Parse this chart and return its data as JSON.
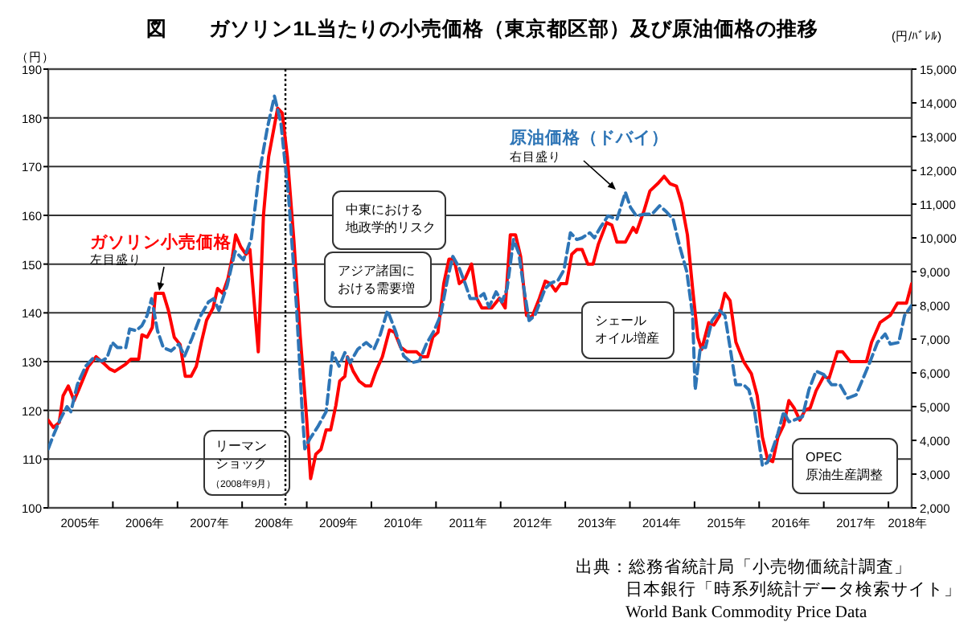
{
  "chart_data": {
    "type": "line",
    "title": "図　　ガソリン1L当たりの小売価格（東京都区部）及び原油価格の推移",
    "ylabel": "（円）",
    "y2label": "(円/ﾊﾞﾚﾙ)",
    "xlim": [
      2005,
      2018.36
    ],
    "xticks": [
      {
        "value": 2005.5,
        "label": "2005年"
      },
      {
        "value": 2006,
        "label": null
      },
      {
        "value": 2006.5,
        "label": "2006年"
      },
      {
        "value": 2007,
        "label": null
      },
      {
        "value": 2007.5,
        "label": "2007年"
      },
      {
        "value": 2008,
        "label": null
      },
      {
        "value": 2008.5,
        "label": "2008年"
      },
      {
        "value": 2009,
        "label": null
      },
      {
        "value": 2009.5,
        "label": "2009年"
      },
      {
        "value": 2010,
        "label": null
      },
      {
        "value": 2010.5,
        "label": "2010年"
      },
      {
        "value": 2011,
        "label": null
      },
      {
        "value": 2011.5,
        "label": "2011年"
      },
      {
        "value": 2012,
        "label": null
      },
      {
        "value": 2012.5,
        "label": "2012年"
      },
      {
        "value": 2013,
        "label": null
      },
      {
        "value": 2013.5,
        "label": "2013年"
      },
      {
        "value": 2014,
        "label": null
      },
      {
        "value": 2014.5,
        "label": "2014年"
      },
      {
        "value": 2015,
        "label": null
      },
      {
        "value": 2015.5,
        "label": "2015年"
      },
      {
        "value": 2016,
        "label": null
      },
      {
        "value": 2016.5,
        "label": "2016年"
      },
      {
        "value": 2017,
        "label": null
      },
      {
        "value": 2017.5,
        "label": "2017年"
      },
      {
        "value": 2018,
        "label": null
      },
      {
        "value": 2018.3,
        "label": "2018年"
      }
    ],
    "ylim": [
      100,
      190
    ],
    "yticks": [
      100,
      110,
      120,
      130,
      140,
      150,
      160,
      170,
      180,
      190
    ],
    "y2lim": [
      2000,
      15000
    ],
    "y2ticks": [
      {
        "value": 2000,
        "label": "2,000"
      },
      {
        "value": 3000,
        "label": "3,000"
      },
      {
        "value": 4000,
        "label": "4,000"
      },
      {
        "value": 5000,
        "label": "5,000"
      },
      {
        "value": 6000,
        "label": "6,000"
      },
      {
        "value": 7000,
        "label": "7,000"
      },
      {
        "value": 8000,
        "label": "8,000"
      },
      {
        "value": 9000,
        "label": "9,000"
      },
      {
        "value": 10000,
        "label": "10,000"
      },
      {
        "value": 11000,
        "label": "11,000"
      },
      {
        "value": 12000,
        "label": "12,000"
      },
      {
        "value": 13000,
        "label": "13,000"
      },
      {
        "value": 14000,
        "label": "14,000"
      },
      {
        "value": 15000,
        "label": "15,000"
      }
    ],
    "grid": "y",
    "legend": false,
    "marker": "none",
    "series": [
      {
        "name": "ガソリン小売価格",
        "color": "#ff0000",
        "line_style": "solid",
        "x": [
          2005.0,
          2005.08,
          2005.17,
          2005.23,
          2005.31,
          2005.4,
          2005.48,
          2005.62,
          2005.74,
          2005.87,
          2005.95,
          2006.03,
          2006.2,
          2006.28,
          2006.4,
          2006.45,
          2006.53,
          2006.61,
          2006.66,
          2006.78,
          2006.86,
          2006.95,
          2007.04,
          2007.12,
          2007.21,
          2007.29,
          2007.37,
          2007.45,
          2007.55,
          2007.62,
          2007.7,
          2007.78,
          2007.85,
          2007.9,
          2007.98,
          2008.06,
          2008.12,
          2008.25,
          2008.33,
          2008.41,
          2008.55,
          2008.62,
          2008.7,
          2008.8,
          2008.9,
          2009.0,
          2009.06,
          2009.14,
          2009.22,
          2009.3,
          2009.37,
          2009.45,
          2009.51,
          2009.59,
          2009.63,
          2009.72,
          2009.81,
          2009.91,
          2009.99,
          2010.07,
          2010.17,
          2010.28,
          2010.36,
          2010.45,
          2010.55,
          2010.7,
          2010.78,
          2010.87,
          2010.95,
          2011.03,
          2011.12,
          2011.2,
          2011.28,
          2011.36,
          2011.45,
          2011.55,
          2011.63,
          2011.71,
          2011.78,
          2011.86,
          2011.98,
          2012.07,
          2012.15,
          2012.23,
          2012.31,
          2012.4,
          2012.48,
          2012.6,
          2012.69,
          2012.77,
          2012.85,
          2012.93,
          2013.02,
          2013.1,
          2013.18,
          2013.26,
          2013.35,
          2013.43,
          2013.51,
          2013.64,
          2013.72,
          2013.8,
          2013.93,
          2014.05,
          2014.1,
          2014.22,
          2014.31,
          2014.43,
          2014.53,
          2014.62,
          2014.72,
          2014.8,
          2014.89,
          2014.97,
          2015.05,
          2015.11,
          2015.22,
          2015.3,
          2015.39,
          2015.47,
          2015.55,
          2015.64,
          2015.76,
          2015.88,
          2015.97,
          2016.05,
          2016.13,
          2016.21,
          2016.29,
          2016.38,
          2016.46,
          2016.54,
          2016.63,
          2016.71,
          2016.79,
          2016.88,
          2017.0,
          2017.08,
          2017.21,
          2017.29,
          2017.41,
          2017.5,
          2017.66,
          2017.74,
          2017.87,
          2018.03,
          2018.14,
          2018.28,
          2018.36
        ],
        "values": [
          118,
          116.5,
          117.5,
          123,
          125,
          122,
          124.5,
          129,
          131,
          129.5,
          128.5,
          128,
          129.5,
          130.5,
          130.5,
          135.5,
          135,
          137,
          144,
          144,
          140.5,
          135,
          133.5,
          127,
          127,
          129,
          134,
          138.5,
          141,
          145,
          144,
          147,
          151.5,
          156,
          153.5,
          152,
          153,
          132,
          160,
          172,
          182,
          181,
          172,
          155,
          135,
          118,
          106,
          111,
          112,
          116,
          116,
          121,
          126,
          127,
          131,
          128,
          126,
          125,
          125,
          128,
          131,
          136.5,
          136,
          133,
          132,
          132,
          131,
          131,
          135,
          136,
          146,
          151,
          151,
          146,
          147,
          150,
          143,
          141,
          141,
          141,
          143,
          141,
          156,
          156,
          151.5,
          139.5,
          139,
          143,
          146.5,
          146,
          144.5,
          146,
          146,
          152,
          153,
          153,
          150,
          150,
          154,
          158.5,
          158,
          154.5,
          154.5,
          157.5,
          156.5,
          161,
          165,
          166.5,
          168,
          166.5,
          166,
          162.5,
          156,
          145,
          135,
          132.5,
          138,
          137.5,
          139.5,
          144,
          142.5,
          134,
          130,
          127.5,
          123,
          114.5,
          110,
          109.5,
          114.5,
          117,
          122,
          120.5,
          118,
          120,
          120.5,
          124,
          127,
          126.5,
          132,
          132,
          130,
          130,
          130,
          134,
          138,
          139.5,
          142,
          142,
          146
        ]
      },
      {
        "name": "原油価格（ドバイ）",
        "color": "#2e75b6",
        "line_style": "dashed",
        "axis": "y2",
        "x": [
          2005.0,
          2005.08,
          2005.18,
          2005.29,
          2005.35,
          2005.45,
          2005.58,
          2005.7,
          2005.83,
          2005.91,
          2005.99,
          2006.07,
          2006.2,
          2006.26,
          2006.36,
          2006.45,
          2006.53,
          2006.6,
          2006.69,
          2006.78,
          2006.9,
          2007.02,
          2007.11,
          2007.23,
          2007.36,
          2007.48,
          2007.56,
          2007.64,
          2007.77,
          2007.89,
          2008.02,
          2008.14,
          2008.26,
          2008.39,
          2008.5,
          2008.6,
          2008.72,
          2008.84,
          2008.93,
          2008.97,
          2009.05,
          2009.17,
          2009.3,
          2009.4,
          2009.5,
          2009.59,
          2009.67,
          2009.79,
          2009.92,
          2010.04,
          2010.14,
          2010.25,
          2010.37,
          2010.5,
          2010.62,
          2010.74,
          2010.85,
          2010.97,
          2011.07,
          2011.18,
          2011.26,
          2011.35,
          2011.45,
          2011.53,
          2011.64,
          2011.74,
          2011.82,
          2011.93,
          2012.02,
          2012.1,
          2012.2,
          2012.28,
          2012.36,
          2012.44,
          2012.53,
          2012.63,
          2012.69,
          2012.77,
          2012.89,
          2012.98,
          2013.08,
          2013.18,
          2013.26,
          2013.38,
          2013.45,
          2013.54,
          2013.66,
          2013.8,
          2013.93,
          2014.01,
          2014.1,
          2014.22,
          2014.34,
          2014.46,
          2014.55,
          2014.67,
          2014.77,
          2014.88,
          2014.97,
          2015.01,
          2015.09,
          2015.17,
          2015.27,
          2015.39,
          2015.47,
          2015.55,
          2015.64,
          2015.76,
          2015.84,
          2015.93,
          2016.05,
          2016.13,
          2016.21,
          2016.29,
          2016.38,
          2016.46,
          2016.54,
          2016.67,
          2016.77,
          2016.88,
          2017.0,
          2017.12,
          2017.25,
          2017.37,
          2017.5,
          2017.6,
          2017.71,
          2017.83,
          2017.95,
          2018.03,
          2018.16,
          2018.25,
          2018.36
        ],
        "values": [
          3750,
          4150,
          4600,
          5000,
          4850,
          5650,
          6200,
          6450,
          6350,
          6450,
          6900,
          6750,
          6750,
          7300,
          7250,
          7400,
          7700,
          8200,
          7250,
          6750,
          6650,
          6850,
          6500,
          7050,
          7700,
          8100,
          8200,
          7850,
          8600,
          9600,
          9350,
          9950,
          11850,
          13250,
          14200,
          13400,
          11200,
          8000,
          4850,
          3750,
          4050,
          4400,
          4850,
          6600,
          6200,
          6600,
          6300,
          6700,
          6900,
          6700,
          7150,
          7850,
          7250,
          6500,
          6300,
          6350,
          6850,
          7250,
          7700,
          8800,
          9450,
          9150,
          8650,
          8200,
          8200,
          8350,
          7950,
          8400,
          8100,
          8500,
          9950,
          9550,
          8500,
          7550,
          7700,
          8200,
          8500,
          8650,
          8750,
          9050,
          10150,
          9950,
          10000,
          10150,
          10000,
          10300,
          10650,
          10550,
          11350,
          10900,
          10650,
          10700,
          10700,
          10950,
          10800,
          10550,
          9750,
          9000,
          7700,
          5500,
          6750,
          6750,
          7550,
          7850,
          7700,
          6750,
          5650,
          5650,
          5500,
          4850,
          3250,
          3350,
          3750,
          4200,
          4850,
          4550,
          4600,
          4700,
          5500,
          6050,
          5950,
          5650,
          5650,
          5250,
          5350,
          5800,
          6300,
          6900,
          7150,
          6850,
          6900,
          7700,
          8000
        ]
      }
    ],
    "ref_lines": [
      {
        "axis": "x",
        "value": 2008.67,
        "label": "リーマンショック",
        "line_style": "dotted",
        "color": "#000000"
      }
    ],
    "annotations": [
      "左目盛り",
      "右目盛り",
      "中東における地政学的リスク",
      "アジア諸国における需要増",
      "（2008年9月）",
      "シェールオイル増産",
      "OPEC原油生産調整",
      "出典：総務省統計局「小売物価統計調査」",
      "日本銀行「時系列統計データ検索サイト」",
      "World Bank Commodity Price Data"
    ]
  }
}
